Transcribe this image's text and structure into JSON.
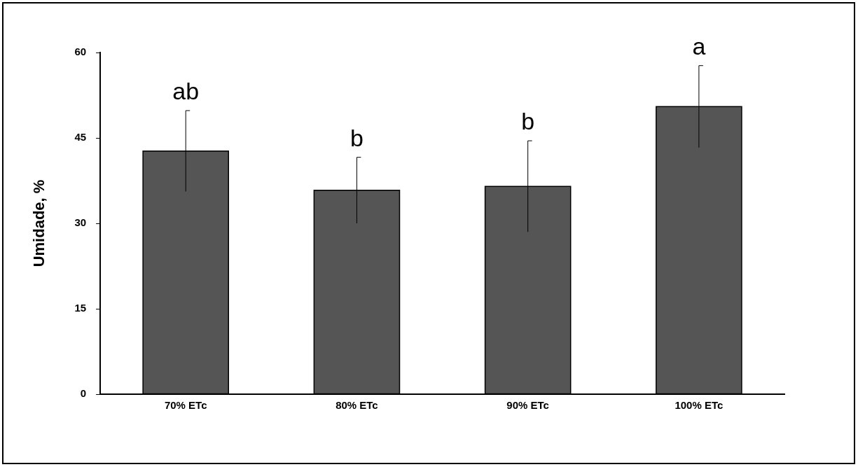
{
  "chart_data": {
    "type": "bar",
    "ylabel": "Umidade, %",
    "categories": [
      "70% ETc",
      "80% ETc",
      "90% ETc",
      "100% ETc"
    ],
    "values": [
      42.7,
      35.8,
      36.5,
      50.5
    ],
    "errors": [
      7.1,
      5.8,
      8.0,
      7.2
    ],
    "color": "#555555",
    "ylim": [
      0,
      60
    ],
    "yticks": [
      0,
      15,
      30,
      45,
      60
    ],
    "grid": false,
    "annotations": [
      {
        "text": "ab",
        "x": "70% ETc"
      },
      {
        "text": "b",
        "x": "80% ETc"
      },
      {
        "text": "b",
        "x": "90% ETc"
      },
      {
        "text": "a",
        "x": "100% ETc"
      }
    ]
  }
}
